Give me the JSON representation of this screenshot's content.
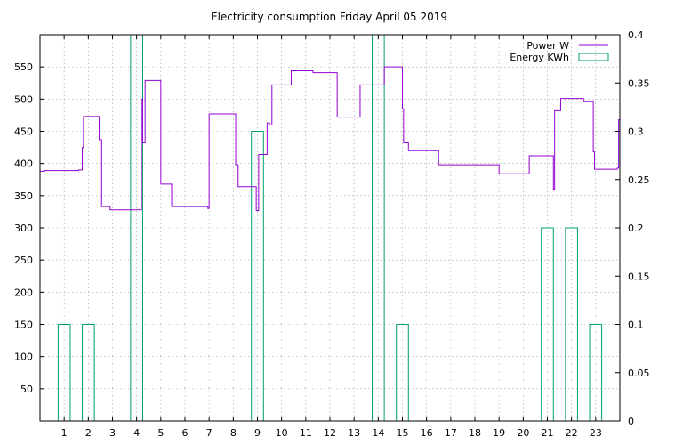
{
  "chart_data": {
    "type": "line",
    "title": "Electricity consumption Friday April 05 2019",
    "xlabel": "",
    "ylabel": "",
    "xlim": [
      0,
      24
    ],
    "ylim": [
      0,
      600
    ],
    "y2lim": [
      0,
      0.4
    ],
    "x_ticks": [
      "1",
      "2",
      "3",
      "4",
      "5",
      "6",
      "7",
      "8",
      "9",
      "10",
      "11",
      "12",
      "13",
      "14",
      "15",
      "16",
      "17",
      "18",
      "19",
      "20",
      "21",
      "22",
      "23"
    ],
    "y_ticks": [
      50,
      100,
      150,
      200,
      250,
      300,
      350,
      400,
      450,
      500,
      550
    ],
    "y_tick_labels": [
      "50",
      "100",
      "150",
      "200",
      "250",
      "300",
      "350",
      "400",
      "450",
      "500",
      "550"
    ],
    "y2_ticks": [
      0,
      0.05,
      0.1,
      0.15,
      0.2,
      0.25,
      0.3,
      0.35,
      0.4
    ],
    "y2_tick_labels": [
      "0",
      "0.05",
      "0.1",
      "0.15",
      "0.2",
      "0.25",
      "0.3",
      "0.35",
      "0.4"
    ],
    "grid": true,
    "legend_position": "top-right",
    "colors": {
      "power": "#9400d3",
      "energy": "#009e73"
    },
    "series": [
      {
        "name": "Power W",
        "axis": "y",
        "style": "step",
        "points": [
          [
            0.0,
            388
          ],
          [
            0.2,
            389
          ],
          [
            1.6,
            390
          ],
          [
            1.75,
            425
          ],
          [
            1.8,
            473
          ],
          [
            2.45,
            437
          ],
          [
            2.55,
            333
          ],
          [
            2.9,
            328
          ],
          [
            4.15,
            328
          ],
          [
            4.2,
            500
          ],
          [
            4.25,
            432
          ],
          [
            4.35,
            529
          ],
          [
            5.0,
            368
          ],
          [
            5.45,
            333
          ],
          [
            6.95,
            330
          ],
          [
            7.0,
            477
          ],
          [
            8.1,
            398
          ],
          [
            8.2,
            364
          ],
          [
            8.95,
            327
          ],
          [
            9.05,
            414
          ],
          [
            9.4,
            463
          ],
          [
            9.5,
            460
          ],
          [
            9.6,
            522
          ],
          [
            10.4,
            544
          ],
          [
            11.3,
            541
          ],
          [
            12.3,
            472
          ],
          [
            13.25,
            522
          ],
          [
            14.25,
            550
          ],
          [
            15.0,
            485
          ],
          [
            15.05,
            432
          ],
          [
            15.25,
            420
          ],
          [
            16.5,
            398
          ],
          [
            19.0,
            384
          ],
          [
            20.25,
            412
          ],
          [
            21.25,
            360
          ],
          [
            21.3,
            482
          ],
          [
            21.55,
            501
          ],
          [
            22.5,
            496
          ],
          [
            22.9,
            418
          ],
          [
            22.95,
            391
          ],
          [
            23.9,
            393
          ],
          [
            23.95,
            468
          ],
          [
            24.0,
            468
          ]
        ]
      },
      {
        "name": "Energy KWh",
        "axis": "y2",
        "style": "boxes",
        "categories": [
          1,
          2,
          3,
          4,
          5,
          6,
          7,
          8,
          9,
          10,
          11,
          12,
          13,
          14,
          15,
          16,
          17,
          18,
          19,
          20,
          21,
          22,
          23
        ],
        "values": [
          0.1,
          0.1,
          0,
          0.4,
          0,
          0,
          0,
          0,
          0.3,
          0,
          0,
          0,
          0,
          0.4,
          0.1,
          0,
          0,
          0,
          0,
          0,
          0.2,
          0.2,
          0.1
        ]
      }
    ]
  }
}
